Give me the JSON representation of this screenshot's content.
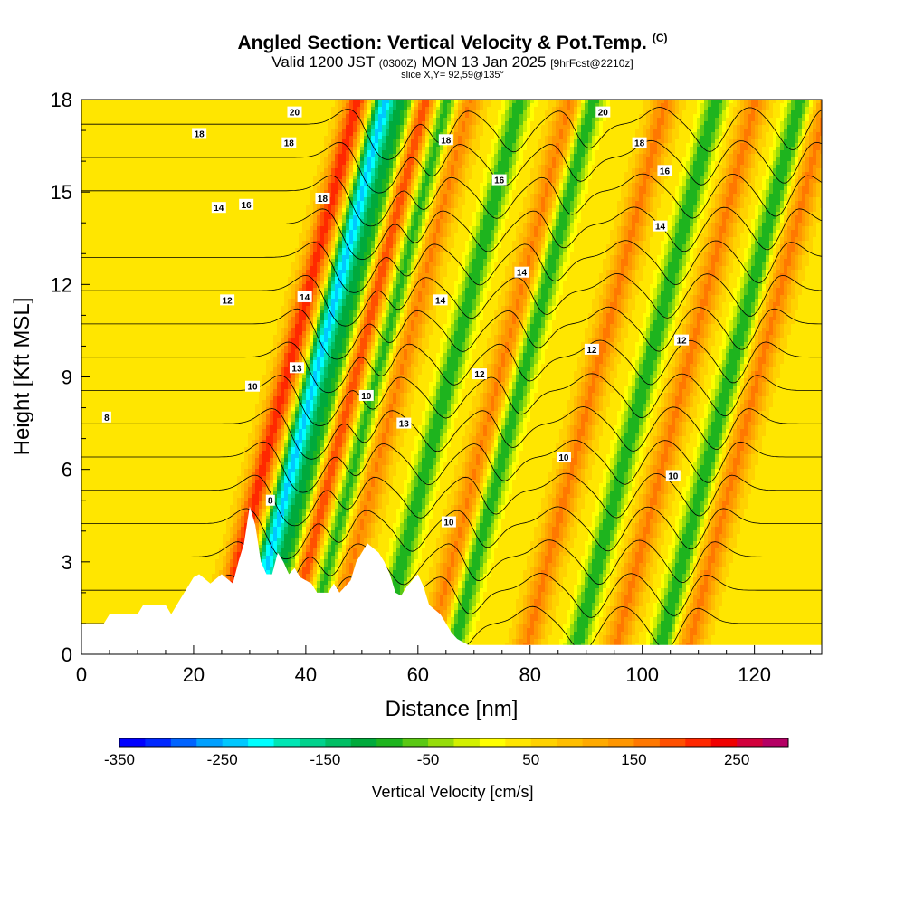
{
  "title": {
    "main": "Angled Section: Vertical Velocity & Pot.Temp.",
    "main_tag": "(C)",
    "valid_prefix": "Valid 1200 JST",
    "valid_zulu": "(0300Z)",
    "valid_date": "MON 13 Jan 2025",
    "forecast": "[9hrFcst@2210z]",
    "slice": "slice X,Y= 92,59@135°"
  },
  "chart_data": {
    "type": "heatmap",
    "xlabel": "Distance [nm]",
    "ylabel": "Height [Kft MSL]",
    "xlim": [
      0,
      132
    ],
    "ylim": [
      0,
      18
    ],
    "x_ticks": [
      0,
      20,
      40,
      60,
      80,
      100,
      120
    ],
    "y_ticks": [
      0,
      3,
      6,
      9,
      12,
      15,
      18
    ],
    "colorbar": {
      "title": "Vertical Velocity [cm/s]",
      "range": [
        -350,
        300
      ],
      "step": 25,
      "tick_values": [
        -350,
        -250,
        -150,
        -50,
        50,
        150,
        250
      ],
      "tick_labels": [
        "-350",
        "-250",
        "-150",
        "-50",
        "50",
        "150",
        "250"
      ],
      "colors": [
        "#0000ff",
        "#0028ff",
        "#0064ff",
        "#00a0ff",
        "#00c8ff",
        "#00ffff",
        "#00e6b4",
        "#00d28c",
        "#00be64",
        "#00aa3c",
        "#1eb41e",
        "#5ac814",
        "#96dc0a",
        "#d2f000",
        "#ffff00",
        "#ffe600",
        "#ffd200",
        "#ffbe00",
        "#ffaa00",
        "#ff9600",
        "#ff7800",
        "#ff5000",
        "#ff2800",
        "#f00000",
        "#d2003c",
        "#b40064"
      ]
    },
    "updraft_bands_x_at_zero": [
      24,
      36,
      44,
      62,
      79,
      95,
      108
    ],
    "downdraft_bands_x_at_zero": [
      29,
      33,
      40,
      53,
      66,
      88,
      103
    ],
    "band_slope_nm_per_kft": 1.4,
    "terrain": [
      [
        0,
        1.0
      ],
      [
        4,
        1.0
      ],
      [
        5,
        1.3
      ],
      [
        10,
        1.3
      ],
      [
        11,
        1.6
      ],
      [
        15,
        1.6
      ],
      [
        16,
        1.3
      ],
      [
        17,
        1.6
      ],
      [
        18,
        1.9
      ],
      [
        19,
        2.2
      ],
      [
        20,
        2.5
      ],
      [
        21,
        2.6
      ],
      [
        23,
        2.3
      ],
      [
        25,
        2.6
      ],
      [
        27,
        2.3
      ],
      [
        28,
        3.0
      ],
      [
        29,
        3.6
      ],
      [
        30,
        4.8
      ],
      [
        31,
        4.2
      ],
      [
        32,
        3.0
      ],
      [
        33,
        2.6
      ],
      [
        34,
        2.6
      ],
      [
        35,
        3.3
      ],
      [
        36,
        3.0
      ],
      [
        37,
        2.6
      ],
      [
        38,
        2.8
      ],
      [
        39,
        2.5
      ],
      [
        41,
        2.3
      ],
      [
        42,
        2.0
      ],
      [
        44,
        2.0
      ],
      [
        45,
        2.3
      ],
      [
        46,
        2.0
      ],
      [
        48,
        2.4
      ],
      [
        49,
        3.0
      ],
      [
        51,
        3.6
      ],
      [
        53,
        3.3
      ],
      [
        54,
        3.0
      ],
      [
        55,
        2.6
      ],
      [
        56,
        2.0
      ],
      [
        57,
        1.9
      ],
      [
        58,
        2.2
      ],
      [
        59,
        2.4
      ],
      [
        60,
        2.6
      ],
      [
        61,
        2.2
      ],
      [
        62,
        1.6
      ],
      [
        64,
        1.3
      ],
      [
        65,
        1.0
      ],
      [
        66,
        0.7
      ],
      [
        67,
        0.5
      ],
      [
        69,
        0.3
      ],
      [
        132,
        0.3
      ]
    ],
    "potential_temperature_contours": {
      "units": "C",
      "labels": [
        {
          "x": 4.5,
          "y": 7.7,
          "text": "8"
        },
        {
          "x": 33.7,
          "y": 5.0,
          "text": "8"
        },
        {
          "x": 30.5,
          "y": 8.7,
          "text": "10"
        },
        {
          "x": 50.8,
          "y": 8.4,
          "text": "10"
        },
        {
          "x": 65.5,
          "y": 4.3,
          "text": "10"
        },
        {
          "x": 86.0,
          "y": 6.4,
          "text": "10"
        },
        {
          "x": 105.5,
          "y": 5.8,
          "text": "10"
        },
        {
          "x": 26.0,
          "y": 11.5,
          "text": "12"
        },
        {
          "x": 38.4,
          "y": 9.3,
          "text": "13"
        },
        {
          "x": 57.5,
          "y": 7.5,
          "text": "13"
        },
        {
          "x": 71.0,
          "y": 9.1,
          "text": "12"
        },
        {
          "x": 91.0,
          "y": 9.9,
          "text": "12"
        },
        {
          "x": 107.0,
          "y": 10.2,
          "text": "12"
        },
        {
          "x": 24.5,
          "y": 14.5,
          "text": "14"
        },
        {
          "x": 39.8,
          "y": 11.6,
          "text": "14"
        },
        {
          "x": 64.0,
          "y": 11.5,
          "text": "14"
        },
        {
          "x": 78.5,
          "y": 12.4,
          "text": "14"
        },
        {
          "x": 103.2,
          "y": 13.9,
          "text": "14"
        },
        {
          "x": 29.4,
          "y": 14.6,
          "text": "16"
        },
        {
          "x": 74.5,
          "y": 15.4,
          "text": "16"
        },
        {
          "x": 104.0,
          "y": 15.7,
          "text": "16"
        },
        {
          "x": 21.0,
          "y": 16.9,
          "text": "18"
        },
        {
          "x": 37.0,
          "y": 16.6,
          "text": "18"
        },
        {
          "x": 43.0,
          "y": 14.8,
          "text": "18"
        },
        {
          "x": 65.0,
          "y": 16.7,
          "text": "18"
        },
        {
          "x": 99.5,
          "y": 16.6,
          "text": "18"
        },
        {
          "x": 38.0,
          "y": 17.6,
          "text": "20"
        },
        {
          "x": 93.0,
          "y": 17.6,
          "text": "20"
        }
      ]
    }
  }
}
